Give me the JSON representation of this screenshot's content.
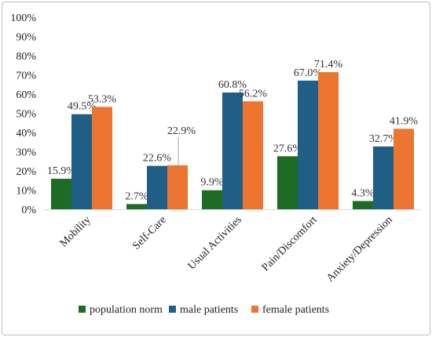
{
  "chart_data": {
    "type": "bar",
    "categories": [
      "Mobility",
      "Self-Care",
      "Usual Activities",
      "Pain/Discomfort",
      "Anxiety/Depression"
    ],
    "series": [
      {
        "name": "population norm",
        "values": [
          15.9,
          2.7,
          9.9,
          27.6,
          4.3
        ],
        "labels": [
          "15.9%",
          "2.7%",
          "9.9%",
          "27.6%",
          "4.3%"
        ],
        "color": "#1e6b23"
      },
      {
        "name": "male patients",
        "values": [
          49.5,
          22.6,
          60.8,
          67.0,
          32.7
        ],
        "labels": [
          "49.5%",
          "22.6%",
          "60.8%",
          "67.0%",
          "32.7%"
        ],
        "color": "#1f5f85"
      },
      {
        "name": "female patients",
        "values": [
          53.3,
          22.9,
          56.2,
          71.4,
          41.9
        ],
        "labels": [
          "53.3%",
          "22.9%",
          "56.2%",
          "71.4%",
          "41.9%"
        ],
        "color": "#ee7431"
      }
    ],
    "y_ticks": [
      "0%",
      "10%",
      "20%",
      "30%",
      "40%",
      "50%",
      "60%",
      "70%",
      "80%",
      "90%",
      "100%"
    ],
    "ylim": [
      0,
      100
    ],
    "title": "",
    "xlabel": "",
    "ylabel": "",
    "grid": false,
    "legend_position": "bottom"
  }
}
